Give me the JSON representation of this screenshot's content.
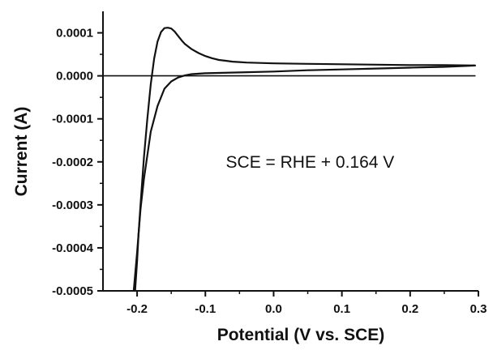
{
  "chart_data": {
    "type": "line",
    "title": "",
    "xlabel": "Potential (V vs. SCE)",
    "ylabel": "Current (A)",
    "xlim": [
      -0.25,
      0.3
    ],
    "ylim": [
      -0.0005,
      0.00015
    ],
    "x_ticks": [
      -0.2,
      -0.1,
      0.0,
      0.1,
      0.2,
      0.3
    ],
    "x_tick_labels": [
      "-0.2",
      "-0.1",
      "0.0",
      "0.1",
      "0.2",
      "0.3"
    ],
    "y_ticks": [
      -0.0005,
      -0.0004,
      -0.0003,
      -0.0002,
      -0.0001,
      0.0,
      0.0001
    ],
    "y_tick_labels": [
      "-0.0005",
      "-0.0004",
      "-0.0003",
      "-0.0002",
      "-0.0001",
      "0.0000",
      "0.0001"
    ],
    "grid": false,
    "legend": "none",
    "annotations": [
      {
        "text": "SCE = RHE + 0.164 V",
        "x": -0.07,
        "y": -0.0002
      }
    ],
    "series": [
      {
        "color": "#111111",
        "x": [
          -0.203,
          -0.2,
          -0.198,
          -0.195,
          -0.19,
          -0.185,
          -0.18,
          -0.175,
          -0.17,
          -0.165,
          -0.16,
          -0.155,
          -0.15,
          -0.145,
          -0.14,
          -0.135,
          -0.13,
          -0.12,
          -0.11,
          -0.1,
          -0.09,
          -0.08,
          -0.07,
          -0.06,
          -0.05,
          -0.04,
          -0.02,
          0.0,
          0.05,
          0.1,
          0.15,
          0.2,
          0.25,
          0.295
        ],
        "y": [
          -0.0005,
          -0.00043,
          -0.00037,
          -0.0003,
          -0.00019,
          -0.0001,
          -2e-05,
          4e-05,
          8e-05,
          0.000102,
          0.000111,
          0.000112,
          0.00011,
          0.000103,
          9.3e-05,
          8.3e-05,
          7.4e-05,
          6.2e-05,
          5.3e-05,
          4.6e-05,
          4.1e-05,
          3.7e-05,
          3.5e-05,
          3.3e-05,
          3.2e-05,
          3.1e-05,
          3e-05,
          2.9e-05,
          2.8e-05,
          2.7e-05,
          2.6e-05,
          2.5e-05,
          2.5e-05,
          2.4e-05
        ]
      },
      {
        "color": "#111111",
        "x": [
          0.295,
          0.25,
          0.2,
          0.15,
          0.1,
          0.05,
          0.0,
          -0.05,
          -0.1,
          -0.12,
          -0.13,
          -0.14,
          -0.15,
          -0.16,
          -0.17,
          -0.18,
          -0.19,
          -0.195,
          -0.2,
          -0.205
        ],
        "y": [
          2.4e-05,
          2.1e-05,
          1.9e-05,
          1.7e-05,
          1.5e-05,
          1.3e-05,
          1e-05,
          8e-06,
          6e-06,
          4e-06,
          1e-06,
          -4e-06,
          -1.3e-05,
          -3e-05,
          -7e-05,
          -0.00013,
          -0.00024,
          -0.00031,
          -0.00041,
          -0.0005
        ]
      },
      {
        "color": "#111111",
        "x": [
          -0.25,
          0.295
        ],
        "y": [
          0.0,
          0.0
        ]
      }
    ]
  }
}
